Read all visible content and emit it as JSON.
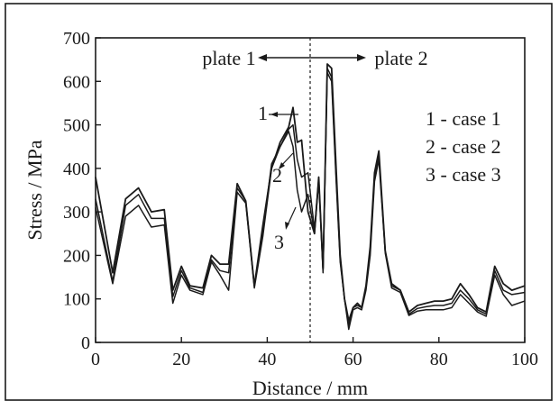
{
  "chart_data": {
    "type": "line",
    "xlabel": "Distance / mm",
    "ylabel": "Stress / MPa",
    "xlim": [
      0,
      100
    ],
    "ylim": [
      0,
      700
    ],
    "x_ticks": [
      "0",
      "20",
      "40",
      "60",
      "80",
      "100"
    ],
    "y_ticks": [
      "0",
      "100",
      "200",
      "300",
      "400",
      "500",
      "600",
      "700"
    ],
    "grid": false,
    "reference_line_x": 50,
    "plate_labels": [
      "plate 1",
      "plate 2"
    ],
    "case_legend": [
      "1 - case 1",
      "2 - case 2",
      "3 - case 3"
    ],
    "curve_markers": [
      "1",
      "2",
      "3"
    ],
    "series": [
      {
        "name": "case 1",
        "x": [
          0,
          4,
          7,
          10,
          13,
          16,
          18,
          20,
          22,
          25,
          27,
          29,
          31,
          33,
          35,
          37,
          39,
          41,
          43,
          45,
          46,
          47,
          48,
          49.5,
          51,
          52,
          53,
          54,
          55,
          56,
          57,
          58,
          59,
          60,
          61,
          62,
          63,
          64,
          65,
          66,
          67.5,
          69,
          71,
          73,
          75,
          77,
          79,
          81,
          83,
          85,
          87,
          89,
          91,
          93,
          95,
          97,
          100
        ],
        "y": [
          380,
          160,
          330,
          355,
          300,
          305,
          120,
          175,
          130,
          125,
          200,
          180,
          180,
          365,
          325,
          130,
          270,
          400,
          460,
          495,
          540,
          460,
          465,
          300,
          250,
          380,
          170,
          640,
          630,
          410,
          200,
          100,
          50,
          80,
          90,
          80,
          130,
          220,
          390,
          440,
          210,
          135,
          120,
          70,
          85,
          90,
          95,
          95,
          100,
          135,
          110,
          80,
          70,
          175,
          135,
          120,
          130
        ]
      },
      {
        "name": "case 2",
        "x": [
          0,
          4,
          7,
          10,
          13,
          16,
          18,
          20,
          22,
          25,
          27,
          29,
          31,
          33,
          35,
          37,
          39,
          41,
          43,
          45,
          46,
          47,
          48,
          49.5,
          51,
          52,
          53,
          54,
          55,
          56,
          57,
          58,
          59,
          60,
          61,
          62,
          63,
          64,
          65,
          66,
          67.5,
          69,
          71,
          73,
          75,
          77,
          79,
          81,
          83,
          85,
          87,
          89,
          91,
          93,
          95,
          97,
          100
        ],
        "y": [
          330,
          140,
          315,
          340,
          285,
          285,
          105,
          165,
          125,
          115,
          190,
          165,
          160,
          355,
          325,
          130,
          255,
          410,
          450,
          490,
          500,
          420,
          380,
          390,
          260,
          375,
          165,
          630,
          610,
          390,
          190,
          100,
          40,
          80,
          85,
          80,
          125,
          210,
          380,
          430,
          210,
          130,
          120,
          65,
          78,
          82,
          85,
          85,
          90,
          120,
          100,
          75,
          65,
          165,
          120,
          110,
          115
        ]
      },
      {
        "name": "case 3",
        "x": [
          0,
          4,
          7,
          10,
          13,
          16,
          18,
          20,
          22,
          25,
          27,
          29,
          31,
          33,
          35,
          37,
          39,
          41,
          43,
          45,
          46,
          47,
          48,
          49.5,
          51,
          52,
          53,
          54,
          55,
          56,
          57,
          58,
          59,
          60,
          61,
          62,
          63,
          64,
          65,
          66,
          67.5,
          69,
          71,
          73,
          75,
          77,
          79,
          81,
          83,
          85,
          87,
          89,
          91,
          93,
          95,
          97,
          100
        ],
        "y": [
          310,
          135,
          290,
          315,
          265,
          270,
          90,
          155,
          120,
          110,
          185,
          155,
          120,
          345,
          320,
          125,
          245,
          400,
          450,
          485,
          450,
          350,
          300,
          340,
          250,
          370,
          160,
          620,
          600,
          380,
          185,
          100,
          30,
          75,
          80,
          75,
          120,
          200,
          370,
          420,
          205,
          125,
          115,
          62,
          72,
          75,
          75,
          75,
          80,
          110,
          90,
          70,
          60,
          155,
          110,
          85,
          95
        ]
      }
    ]
  }
}
